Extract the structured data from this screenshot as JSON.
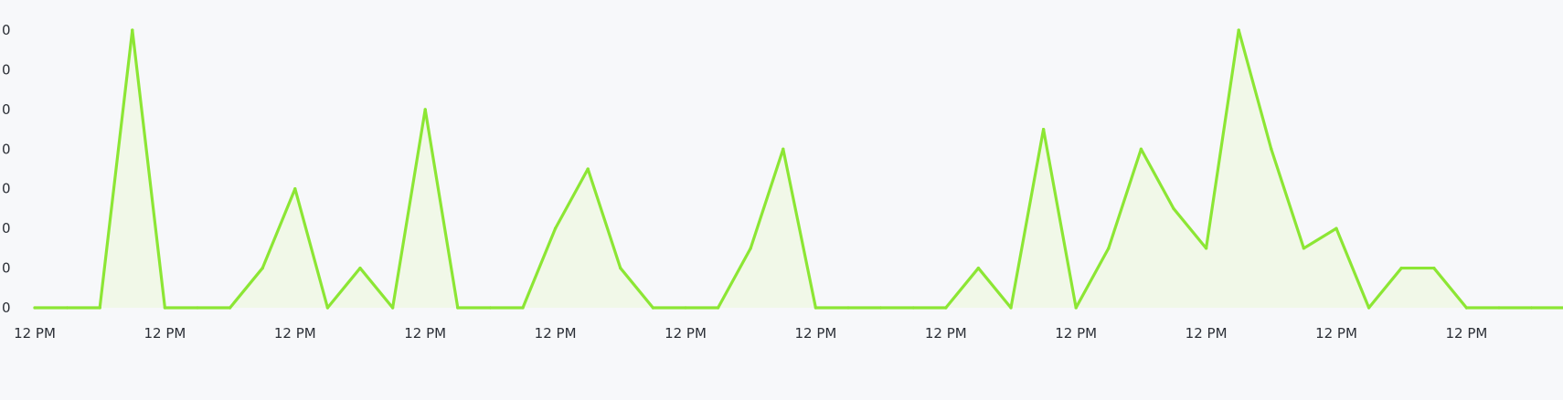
{
  "chart_data": {
    "type": "area",
    "title": "",
    "xlabel": "",
    "ylabel": "",
    "grid": false,
    "legend": "none",
    "y_tick_labels": [
      "0",
      "0",
      "0",
      "0",
      "0",
      "0",
      "0",
      "0"
    ],
    "x_tick_labels": [
      "12 PM",
      "12 PM",
      "12 PM",
      "12 PM",
      "12 PM",
      "12 PM",
      "12 PM",
      "12 PM",
      "12 PM",
      "12 PM",
      "12 PM",
      "12 PM"
    ],
    "ylim": [
      0,
      7
    ],
    "series": [
      {
        "color": "#8ce634",
        "fill": "#f1f8e8",
        "values": [
          0,
          0,
          0,
          7,
          0,
          0,
          0,
          1,
          3,
          0,
          1,
          0,
          5,
          0,
          0,
          0,
          2,
          3.5,
          1,
          0,
          0,
          0,
          1.5,
          4,
          0,
          0,
          0,
          0,
          0,
          1,
          0,
          4.5,
          0,
          1.5,
          4,
          2.5,
          1.5,
          7,
          4,
          1.5,
          2,
          0,
          1,
          1,
          0,
          0,
          0,
          0
        ]
      }
    ]
  }
}
